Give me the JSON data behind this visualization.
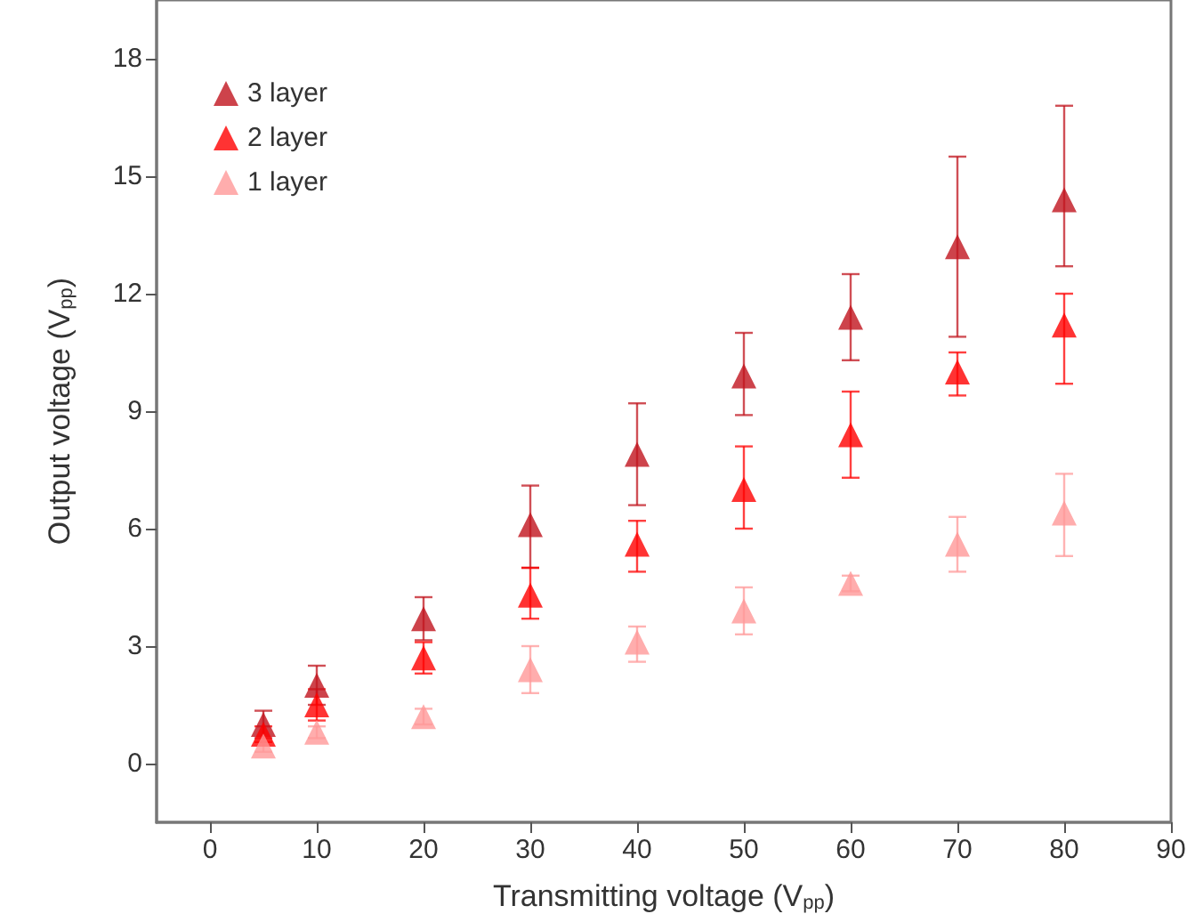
{
  "chart_data": {
    "type": "scatter",
    "xlabel": "Transmitting voltage (V$_{pp}$)",
    "ylabel": "Output voltage (V$_{pp}$)",
    "xlim": [
      -5,
      90
    ],
    "xticks": [
      0,
      10,
      20,
      30,
      40,
      50,
      60,
      70,
      80,
      90
    ],
    "ylim": [
      -1.5,
      19.5
    ],
    "yticks": [
      0,
      3,
      6,
      9,
      12,
      15,
      18
    ],
    "x": [
      5,
      10,
      20,
      30,
      40,
      50,
      60,
      70,
      80
    ],
    "marker": "triangle",
    "grid": false,
    "legend": "top left",
    "series": [
      {
        "name": "3 layer",
        "color": "#c0141e",
        "values": [
          1.0,
          2.0,
          3.7,
          6.1,
          7.9,
          9.9,
          11.4,
          13.2,
          14.4
        ],
        "errors": [
          0.35,
          0.5,
          0.55,
          [
            5.0,
            7.1
          ],
          [
            6.6,
            9.2
          ],
          [
            8.9,
            11.0
          ],
          [
            10.3,
            12.5
          ],
          [
            10.9,
            15.5
          ],
          [
            12.7,
            16.8
          ]
        ]
      },
      {
        "name": "2 layer",
        "color": "#ff0000",
        "values": [
          0.75,
          1.5,
          2.7,
          4.3,
          5.6,
          7.0,
          8.4,
          10.0,
          11.2
        ],
        "errors": [
          0.2,
          [
            1.1,
            1.9
          ],
          [
            2.3,
            3.1
          ],
          [
            3.7,
            5.0
          ],
          [
            4.9,
            6.2
          ],
          [
            6.0,
            8.1
          ],
          [
            7.3,
            9.5
          ],
          [
            9.4,
            10.5
          ],
          [
            9.7,
            12.0
          ]
        ]
      },
      {
        "name": "1 layer",
        "color": "#ff9999",
        "values": [
          0.45,
          0.8,
          1.2,
          2.4,
          3.1,
          3.9,
          4.6,
          5.6,
          6.4
        ],
        "errors": [
          0.15,
          0.15,
          0.2,
          [
            1.8,
            3.0
          ],
          [
            2.6,
            3.5
          ],
          [
            3.3,
            4.5
          ],
          [
            4.4,
            4.8
          ],
          [
            4.9,
            6.3
          ],
          [
            5.3,
            7.4
          ]
        ]
      }
    ]
  }
}
